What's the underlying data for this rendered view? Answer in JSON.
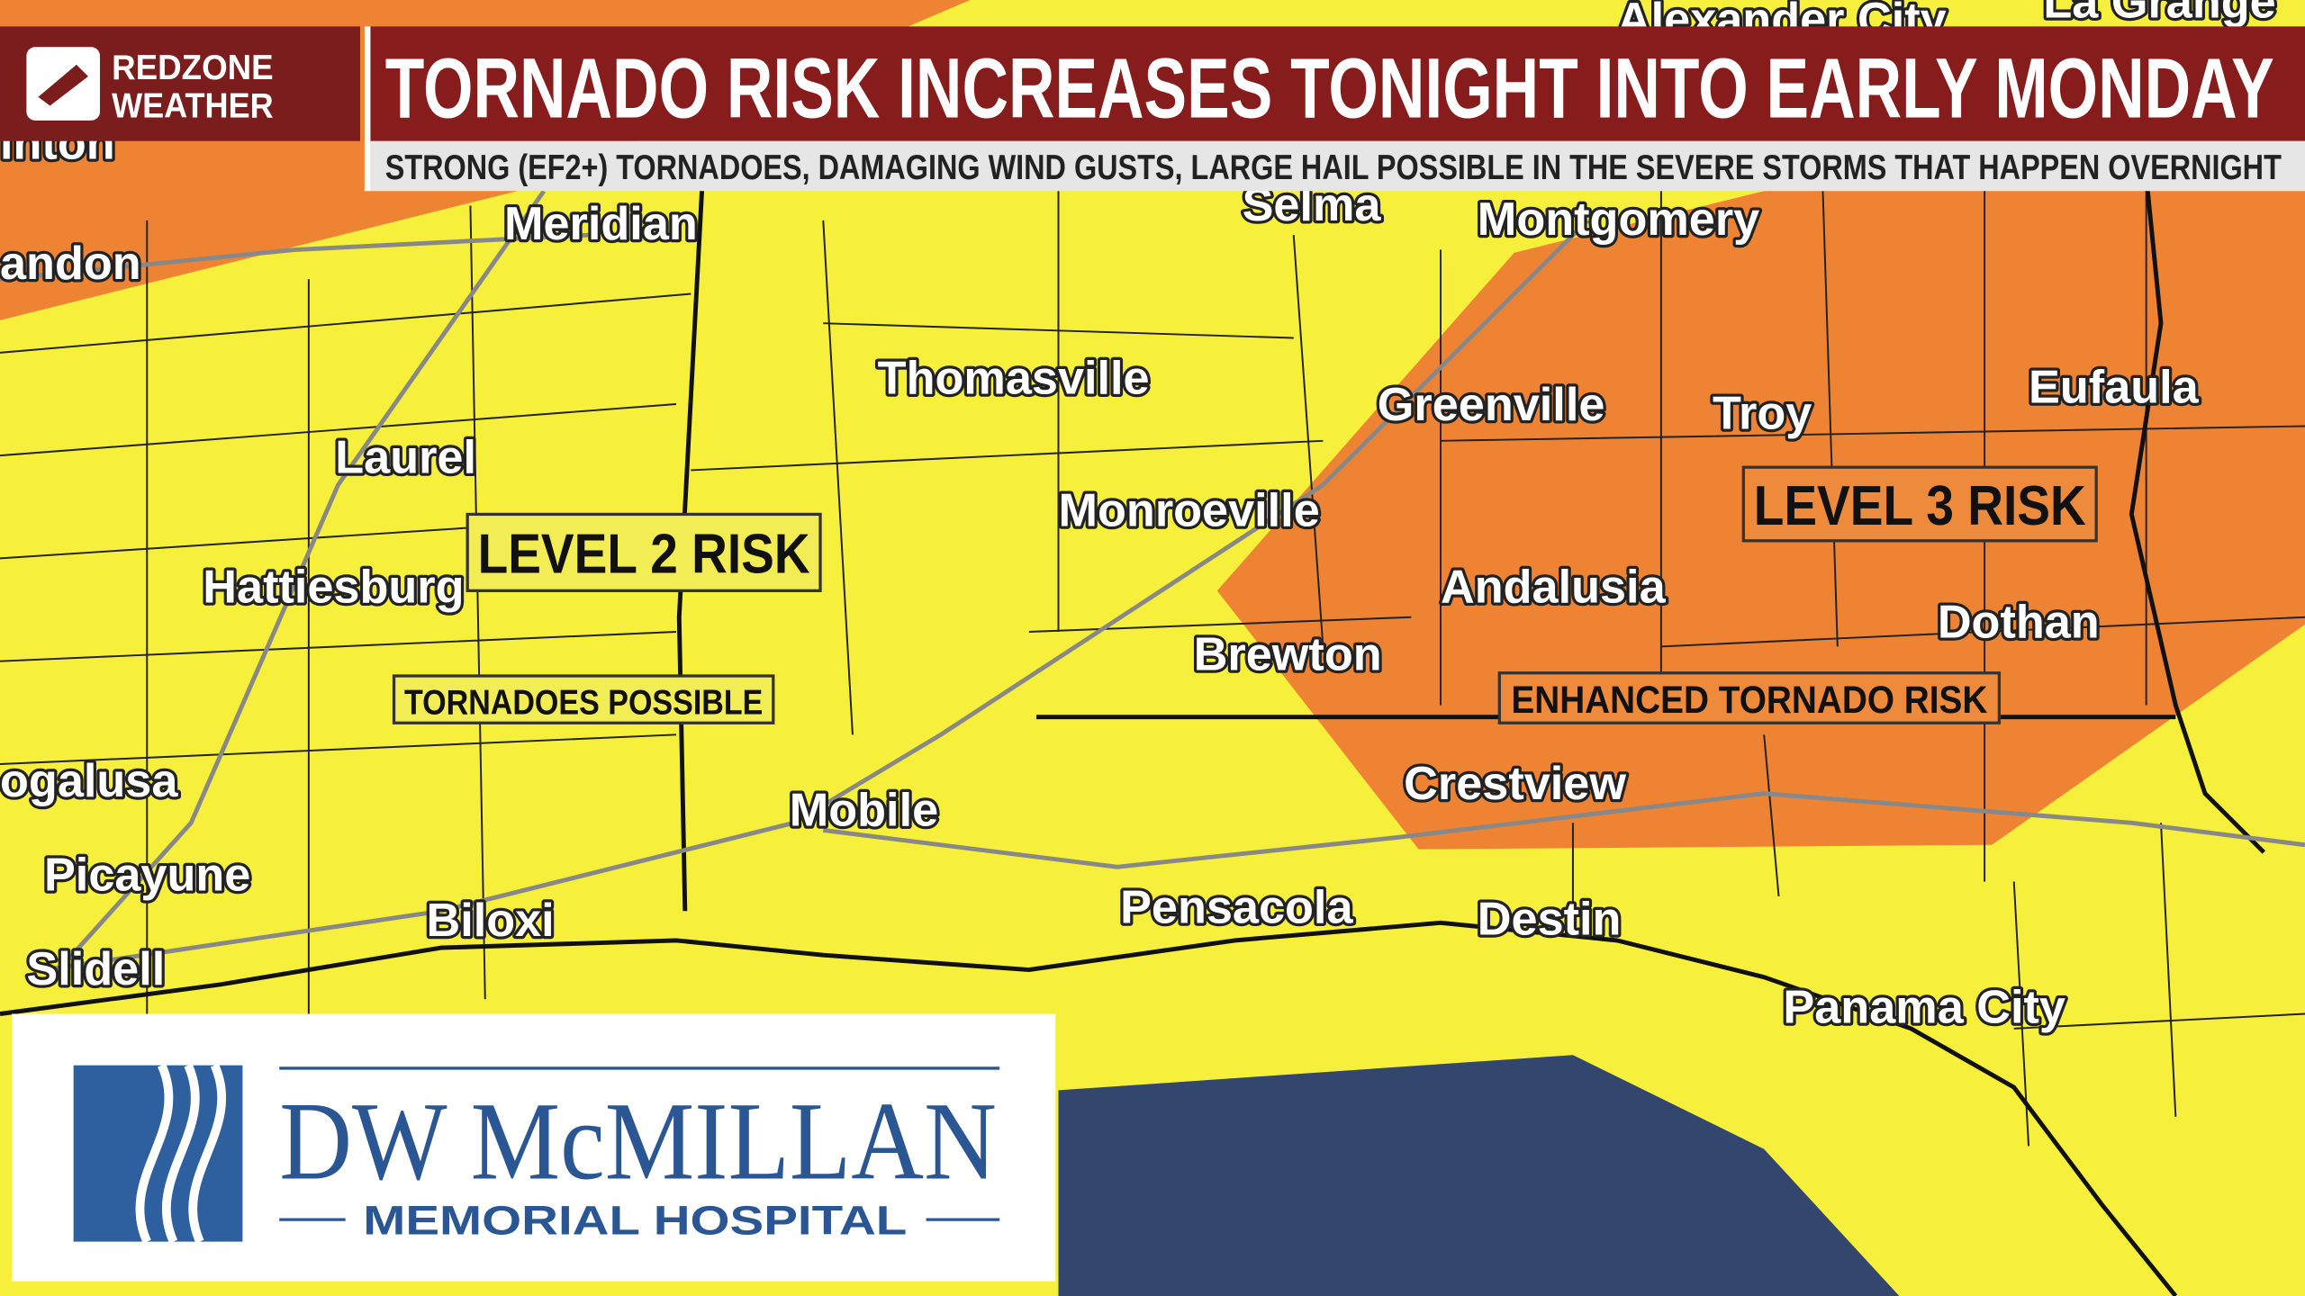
{
  "header": {
    "brand": [
      "REDZONE",
      "WEATHER"
    ],
    "title": "TORNADO RISK INCREASES TONIGHT INTO EARLY MONDAY",
    "subtitle": "STRONG (EF2+) TORNADOES, DAMAGING WIND GUSTS, LARGE HAIL POSSIBLE IN THE SEVERE STORMS THAT HAPPEN OVERNIGHT"
  },
  "cities": [
    "Alexander City",
    "La Grange",
    "inton",
    "andon",
    "Meridian",
    "Selma",
    "Montgomery",
    "Thomasville",
    "Greenville",
    "Troy",
    "Eufaula",
    "Laurel",
    "Monroeville",
    "Hattiesburg",
    "Andalusia",
    "Dothan",
    "Brewton",
    "ogalusa",
    "Crestview",
    "Mobile",
    "Picayune",
    "Biloxi",
    "Pensacola",
    "Destin",
    "Slidell",
    "Panama City"
  ],
  "risk_labels": [
    "LEVEL 2 RISK",
    "TORNADOES POSSIBLE",
    "LEVEL 3 RISK",
    "ENHANCED TORNADO RISK"
  ],
  "sponsor": {
    "name": "DW McMILLAN",
    "tagline": "MEMORIAL HOSPITAL"
  }
}
